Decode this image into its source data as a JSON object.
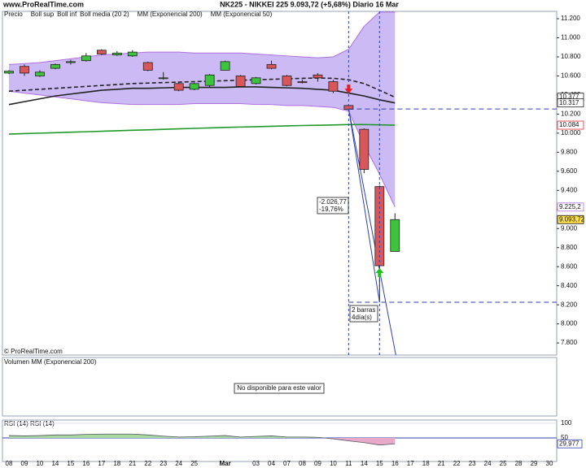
{
  "chart_data": {
    "type": "candlestick",
    "site": "www.ProRealTime.com",
    "title": "NK225 - NIKKEI 225   9.093,72 (+5,68%)   Diario  16 Mar",
    "price_label": "Precio",
    "watermark": "© ProRealTime.com",
    "categories": [
      "08",
      "09",
      "10",
      "14",
      "15",
      "16",
      "17",
      "18",
      "21",
      "22",
      "23",
      "24",
      "25",
      null,
      "Mar",
      null,
      "03",
      "04",
      "07",
      "08",
      "09",
      "10",
      "11",
      "14",
      "15",
      "16",
      "17",
      "18",
      "21",
      "22",
      "23",
      "24",
      "25",
      "28",
      "29",
      "30"
    ],
    "open": [
      10630,
      10700,
      10600,
      10680,
      10740,
      10760,
      10870,
      10820,
      10810,
      10740,
      10580,
      10520,
      10460,
      10500,
      10660,
      10600,
      10520,
      10720,
      10600,
      10540,
      10610,
      10540,
      10290,
      10040,
      9440,
      8760,
      null,
      null,
      null,
      null,
      null,
      null,
      null,
      null,
      null,
      null
    ],
    "high": [
      10660,
      10720,
      10660,
      10730,
      10770,
      10840,
      10880,
      10860,
      10870,
      10750,
      10640,
      10530,
      10530,
      10620,
      10760,
      10610,
      10590,
      10760,
      10610,
      10560,
      10630,
      10560,
      10300,
      10050,
      9450,
      9160,
      null,
      null,
      null,
      null,
      null,
      null,
      null,
      null,
      null,
      null
    ],
    "low": [
      10620,
      10600,
      10590,
      10670,
      10720,
      10750,
      10820,
      10810,
      10800,
      10650,
      10560,
      10440,
      10450,
      10480,
      10660,
      10480,
      10510,
      10670,
      10490,
      10520,
      10540,
      10420,
      10240,
      9580,
      8230,
      8760,
      null,
      null,
      null,
      null,
      null,
      null,
      null,
      null,
      null,
      null
    ],
    "close": [
      10650,
      10630,
      10640,
      10720,
      10750,
      10810,
      10830,
      10840,
      10850,
      10660,
      10580,
      10450,
      10520,
      10610,
      10750,
      10490,
      10580,
      10680,
      10500,
      10530,
      10580,
      10440,
      10250,
      9620,
      8610,
      9093.72,
      null,
      null,
      null,
      null,
      null,
      null,
      null,
      null,
      null,
      null
    ],
    "up_color": "#3cc43c",
    "down_color": "#d9575b",
    "series": [
      {
        "name": "Boll sup",
        "color": "#b070e0",
        "legend_color": "#b070e0",
        "values": [
          10720,
          10730,
          10740,
          10760,
          10780,
          10800,
          10820,
          10830,
          10840,
          10850,
          10850,
          10850,
          10840,
          10840,
          10840,
          10840,
          10830,
          10820,
          10810,
          10800,
          10790,
          10800,
          10880,
          11120,
          11270,
          11270,
          null,
          null,
          null,
          null,
          null,
          null,
          null,
          null,
          null,
          null
        ]
      },
      {
        "name": "Boll inf",
        "color": "#b070e0",
        "legend_color": "#b070e0",
        "values": [
          10440,
          10420,
          10400,
          10380,
          10360,
          10340,
          10320,
          10310,
          10300,
          10300,
          10300,
          10300,
          10310,
          10310,
          10310,
          10310,
          10300,
          10300,
          10290,
          10290,
          10280,
          10270,
          10230,
          9880,
          9570,
          9225.2,
          null,
          null,
          null,
          null,
          null,
          null,
          null,
          null,
          null,
          null
        ]
      },
      {
        "name": "Boll media (20 2)",
        "color": "#222222",
        "legend_color": "#222222",
        "values": [
          10300,
          10330,
          10360,
          10390,
          10410,
          10430,
          10450,
          10460,
          10470,
          10470,
          10475,
          10480,
          10480,
          10480,
          10480,
          10485,
          10485,
          10480,
          10475,
          10470,
          10460,
          10450,
          10420,
          10390,
          10350,
          10317,
          null,
          null,
          null,
          null,
          null,
          null,
          null,
          null,
          null,
          null
        ]
      },
      {
        "name": "MM (Exponencial 200)",
        "color": "#1f9a2a",
        "legend_color": "#e03030",
        "values": [
          9990,
          9995,
          10000,
          10005,
          10010,
          10015,
          10020,
          10025,
          10030,
          10035,
          10040,
          10045,
          10050,
          10055,
          10060,
          10064,
          10068,
          10072,
          10076,
          10080,
          10083,
          10086,
          10090,
          10090,
          10087,
          10084,
          null,
          null,
          null,
          null,
          null,
          null,
          null,
          null,
          null,
          null
        ]
      },
      {
        "name": "MM (Exponencial 50)",
        "color": "#222222",
        "legend_color": "#333333",
        "dash": true,
        "values": [
          10440,
          10450,
          10460,
          10470,
          10480,
          10490,
          10500,
          10510,
          10520,
          10525,
          10530,
          10535,
          10540,
          10545,
          10550,
          10555,
          10560,
          10565,
          10570,
          10575,
          10578,
          10575,
          10560,
          10520,
          10450,
          10377,
          null,
          null,
          null,
          null,
          null,
          null,
          null,
          null,
          null,
          null
        ]
      }
    ],
    "band_fill": "#cbbaf3",
    "ylim": [
      7673,
      11277
    ],
    "yticks": [
      {
        "value": 11200,
        "label": "11.200"
      },
      {
        "value": 11000,
        "label": "11.000"
      },
      {
        "value": 10800,
        "label": "10.800"
      },
      {
        "value": 10600,
        "label": "10.600"
      },
      {
        "value": 10400,
        "label": "10.400"
      },
      {
        "value": 10200,
        "label": "10.200"
      },
      {
        "value": 10000,
        "label": "10.000"
      },
      {
        "value": 9800,
        "label": "9.800"
      },
      {
        "value": 9600,
        "label": "9.600"
      },
      {
        "value": 9400,
        "label": "9.400"
      },
      {
        "value": 9200,
        "label": "9.200"
      },
      {
        "value": 9000,
        "label": "9.000"
      },
      {
        "value": 8800,
        "label": "8.800"
      },
      {
        "value": 8600,
        "label": "8.600"
      },
      {
        "value": 8400,
        "label": "8.400"
      },
      {
        "value": 8200,
        "label": "8.200"
      },
      {
        "value": 8000,
        "label": "8.000"
      },
      {
        "value": 7800,
        "label": "7.800"
      }
    ],
    "price_markers": [
      {
        "value": 10377,
        "label": "10.377",
        "color": "#222222",
        "bg": "#ffffff"
      },
      {
        "value": 10317,
        "label": "10.317",
        "color": "#222222",
        "bg": "#ffffff"
      },
      {
        "value": 10084,
        "label": "10.084",
        "color": "#e03030",
        "bg": "#ffffff"
      },
      {
        "value": 9225.2,
        "label": "9.225,2",
        "color": "#b070e0",
        "bg": "#ffffff"
      },
      {
        "value": 9093.72,
        "label": "9.093,72",
        "color": "#111111",
        "bg": "#ffe14a"
      }
    ],
    "measure": {
      "start": {
        "x": "11",
        "y": 10254
      },
      "end": {
        "x": "15",
        "y": 8227
      },
      "change": "-2.026,77",
      "change_pct": "-19,76%",
      "bars": "2 barras",
      "days": "4día(s)",
      "color": "#3040b0"
    },
    "volume": {
      "title": "Volumen MM (Exponencial 200)",
      "message": "No disponible para este valor"
    },
    "rsi": {
      "title": "RSI (14)  RSI (14)",
      "values": [
        58,
        57,
        58,
        60,
        60,
        62,
        63,
        63,
        63,
        60,
        56,
        53,
        54,
        56,
        58,
        53,
        55,
        57,
        53,
        53,
        52,
        47,
        40,
        34,
        26,
        29.977,
        null,
        null,
        null,
        null,
        null,
        null,
        null,
        null,
        null,
        null
      ],
      "ylim": [
        -30,
        105
      ],
      "yticks": [
        100,
        50
      ],
      "marker": {
        "value": 29.977,
        "label": "29,977"
      },
      "line_color": "#3040b0",
      "above_color": "#a9d9a0",
      "below_color": "#e9a9c9"
    }
  }
}
